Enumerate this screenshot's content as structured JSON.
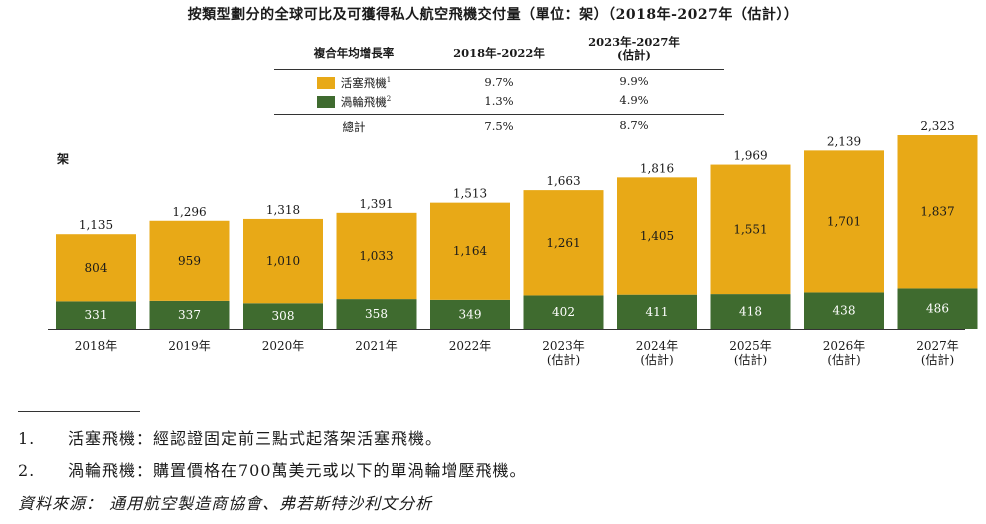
{
  "title": "按類型劃分的全球可比及可獲得私人航空飛機交付量（單位：架）（2018年-2027年（估計））",
  "cagr_table": {
    "header": {
      "label": "複合年均增長率",
      "period1": "2018年-2022年",
      "period2_line1": "2023年-2027年",
      "period2_line2": "(估計)"
    },
    "rows": [
      {
        "label": "活塞飛機",
        "sup": "1",
        "p1": "9.7%",
        "p2": "9.9%",
        "color": "#e8a917"
      },
      {
        "label": "渦輪飛機",
        "sup": "2",
        "p1": "1.3%",
        "p2": "4.9%",
        "color": "#3f6b2f"
      }
    ],
    "total": {
      "label": "總計",
      "p1": "7.5%",
      "p2": "8.7%"
    }
  },
  "unit_label": "架",
  "chart_data": {
    "type": "bar",
    "stacked": true,
    "categories": [
      "2018年",
      "2019年",
      "2020年",
      "2021年",
      "2022年",
      "2023年\n(估計)",
      "2024年\n(估計)",
      "2025年\n(估計)",
      "2026年\n(估計)",
      "2027年\n(估計)"
    ],
    "category_labels": [
      [
        "2018年"
      ],
      [
        "2019年"
      ],
      [
        "2020年"
      ],
      [
        "2021年"
      ],
      [
        "2022年"
      ],
      [
        "2023年",
        "(估計)"
      ],
      [
        "2024年",
        "(估計)"
      ],
      [
        "2025年",
        "(估計)"
      ],
      [
        "2026年",
        "(估計)"
      ],
      [
        "2027年",
        "(估計)"
      ]
    ],
    "series": [
      {
        "name": "渦輪飛機",
        "color": "#3f6b2f",
        "values": [
          331,
          337,
          308,
          358,
          349,
          402,
          411,
          418,
          438,
          486
        ]
      },
      {
        "name": "活塞飛機",
        "color": "#e8a917",
        "values": [
          804,
          959,
          1010,
          1033,
          1164,
          1261,
          1405,
          1551,
          1701,
          1837
        ]
      }
    ],
    "value_labels_bottom": [
      "331",
      "337",
      "308",
      "358",
      "349",
      "402",
      "411",
      "418",
      "438",
      "486"
    ],
    "value_labels_top": [
      "804",
      "959",
      "1,010",
      "1,033",
      "1,164",
      "1,261",
      "1,405",
      "1,551",
      "1,701",
      "1,837"
    ],
    "totals": [
      "1,135",
      "1,296",
      "1,318",
      "1,391",
      "1,513",
      "1,663",
      "1,816",
      "1,969",
      "2,139",
      "2,323"
    ],
    "ylim": [
      0,
      2323
    ],
    "ylabel": "架"
  },
  "notes": [
    {
      "num": "1.",
      "text": "活塞飛機：經認證固定前三點式起落架活塞飛機。"
    },
    {
      "num": "2.",
      "text": "渦輪飛機：購置價格在700萬美元或以下的單渦輪增壓飛機。"
    }
  ],
  "source": "資料來源： 通用航空製造商協會、弗若斯特沙利文分析"
}
